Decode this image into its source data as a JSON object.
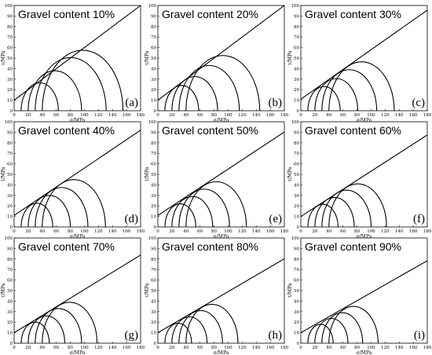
{
  "chart_data": [
    {
      "type": "line",
      "title": "Gravel content 10%",
      "panel_label": "(a)",
      "xlabel": "σ/MPa",
      "ylabel": "τ/MPa",
      "xlim": [
        0,
        180
      ],
      "ylim": [
        0,
        100
      ],
      "xticks": [
        0,
        20,
        40,
        60,
        80,
        100,
        120,
        140,
        160,
        180
      ],
      "yticks": [
        0,
        10,
        20,
        30,
        40,
        50,
        60,
        70,
        80,
        90,
        100
      ],
      "envelope": {
        "intercept": 10,
        "slope": 0.5
      },
      "circles": [
        {
          "sigma3": 10,
          "sigma1": 63
        },
        {
          "sigma3": 20,
          "sigma1": 96
        },
        {
          "sigma3": 30,
          "sigma1": 131
        },
        {
          "sigma3": 40,
          "sigma1": 155
        }
      ]
    },
    {
      "type": "line",
      "title": "Gravel content 20%",
      "panel_label": "(b)",
      "xlabel": "σ/MPa",
      "ylabel": "τ/MPa",
      "xlim": [
        0,
        180
      ],
      "ylim": [
        0,
        100
      ],
      "xticks": [
        0,
        20,
        40,
        60,
        80,
        100,
        120,
        140,
        160,
        180
      ],
      "yticks": [
        0,
        10,
        20,
        30,
        40,
        50,
        60,
        70,
        80,
        90,
        100
      ],
      "envelope": {
        "intercept": 10,
        "slope": 0.5
      },
      "circles": [
        {
          "sigma3": 10,
          "sigma1": 58
        },
        {
          "sigma3": 20,
          "sigma1": 85
        },
        {
          "sigma3": 30,
          "sigma1": 116
        },
        {
          "sigma3": 40,
          "sigma1": 145
        }
      ]
    },
    {
      "type": "line",
      "title": "Gravel content 30%",
      "panel_label": "(c)",
      "xlabel": "σ/MPa",
      "ylabel": "τ/MPa",
      "xlim": [
        0,
        180
      ],
      "ylim": [
        0,
        100
      ],
      "xticks": [
        0,
        20,
        40,
        60,
        80,
        100,
        120,
        140,
        160,
        180
      ],
      "yticks": [
        0,
        10,
        20,
        30,
        40,
        50,
        60,
        70,
        80,
        90,
        100
      ],
      "envelope": {
        "intercept": 11,
        "slope": 0.47
      },
      "circles": [
        {
          "sigma3": 10,
          "sigma1": 56
        },
        {
          "sigma3": 20,
          "sigma1": 81
        },
        {
          "sigma3": 30,
          "sigma1": 108
        },
        {
          "sigma3": 40,
          "sigma1": 133
        }
      ]
    },
    {
      "type": "line",
      "title": "Gravel content 40%",
      "panel_label": "(d)",
      "xlabel": "σ/MPa",
      "ylabel": "τ/MPa",
      "xlim": [
        0,
        180
      ],
      "ylim": [
        0,
        100
      ],
      "xticks": [
        0,
        20,
        40,
        60,
        80,
        100,
        120,
        140,
        160,
        180
      ],
      "yticks": [
        0,
        10,
        20,
        30,
        40,
        50,
        60,
        70,
        80,
        90,
        100
      ],
      "envelope": {
        "intercept": 11,
        "slope": 0.45
      },
      "circles": [
        {
          "sigma3": 10,
          "sigma1": 55
        },
        {
          "sigma3": 20,
          "sigma1": 80
        },
        {
          "sigma3": 30,
          "sigma1": 105
        },
        {
          "sigma3": 40,
          "sigma1": 130
        }
      ]
    },
    {
      "type": "line",
      "title": "Gravel content 50%",
      "panel_label": "(e)",
      "xlabel": "σ/MPa",
      "ylabel": "τ/MPa",
      "xlim": [
        0,
        180
      ],
      "ylim": [
        0,
        100
      ],
      "xticks": [
        0,
        20,
        40,
        60,
        80,
        100,
        120,
        140,
        160,
        180
      ],
      "yticks": [
        0,
        10,
        20,
        30,
        40,
        50,
        60,
        70,
        80,
        90,
        100
      ],
      "envelope": {
        "intercept": 11,
        "slope": 0.44
      },
      "circles": [
        {
          "sigma3": 10,
          "sigma1": 54
        },
        {
          "sigma3": 20,
          "sigma1": 78
        },
        {
          "sigma3": 30,
          "sigma1": 102
        },
        {
          "sigma3": 40,
          "sigma1": 126
        }
      ]
    },
    {
      "type": "line",
      "title": "Gravel content 60%",
      "panel_label": "(f)",
      "xlabel": "σ/MPa",
      "ylabel": "τ/MPa",
      "xlim": [
        0,
        180
      ],
      "ylim": [
        0,
        100
      ],
      "xticks": [
        0,
        20,
        40,
        60,
        80,
        100,
        120,
        140,
        160,
        180
      ],
      "yticks": [
        0,
        10,
        20,
        30,
        40,
        50,
        60,
        70,
        80,
        90,
        100
      ],
      "envelope": {
        "intercept": 10,
        "slope": 0.43
      },
      "circles": [
        {
          "sigma3": 10,
          "sigma1": 53
        },
        {
          "sigma3": 20,
          "sigma1": 76
        },
        {
          "sigma3": 30,
          "sigma1": 100
        },
        {
          "sigma3": 40,
          "sigma1": 122
        }
      ]
    },
    {
      "type": "line",
      "title": "Gravel content 70%",
      "panel_label": "(g)",
      "xlabel": "σ/MPa",
      "ylabel": "τ/MPa",
      "xlim": [
        0,
        180
      ],
      "ylim": [
        0,
        100
      ],
      "xticks": [
        0,
        20,
        40,
        60,
        80,
        100,
        120,
        140,
        160,
        180
      ],
      "yticks": [
        0,
        10,
        20,
        30,
        40,
        50,
        60,
        70,
        80,
        90,
        100
      ],
      "envelope": {
        "intercept": 10,
        "slope": 0.41
      },
      "circles": [
        {
          "sigma3": 10,
          "sigma1": 50
        },
        {
          "sigma3": 20,
          "sigma1": 72
        },
        {
          "sigma3": 30,
          "sigma1": 96
        },
        {
          "sigma3": 40,
          "sigma1": 118
        }
      ]
    },
    {
      "type": "line",
      "title": "Gravel content 80%",
      "panel_label": "(h)",
      "xlabel": "σ/MPa",
      "ylabel": "τ/MPa",
      "xlim": [
        0,
        180
      ],
      "ylim": [
        0,
        100
      ],
      "xticks": [
        0,
        20,
        40,
        60,
        80,
        100,
        120,
        140,
        160,
        180
      ],
      "yticks": [
        0,
        10,
        20,
        30,
        40,
        50,
        60,
        70,
        80,
        90,
        100
      ],
      "envelope": {
        "intercept": 10,
        "slope": 0.39
      },
      "circles": [
        {
          "sigma3": 10,
          "sigma1": 48
        },
        {
          "sigma3": 20,
          "sigma1": 70
        },
        {
          "sigma3": 30,
          "sigma1": 92
        },
        {
          "sigma3": 40,
          "sigma1": 114
        }
      ]
    },
    {
      "type": "line",
      "title": "Gravel content 90%",
      "panel_label": "(i)",
      "xlabel": "σ/MPa",
      "ylabel": "τ/MPa",
      "xlim": [
        0,
        180
      ],
      "ylim": [
        0,
        100
      ],
      "xticks": [
        0,
        20,
        40,
        60,
        80,
        100,
        120,
        140,
        160,
        180
      ],
      "yticks": [
        0,
        10,
        20,
        30,
        40,
        50,
        60,
        70,
        80,
        90,
        100
      ],
      "envelope": {
        "intercept": 10,
        "slope": 0.38
      },
      "circles": [
        {
          "sigma3": 10,
          "sigma1": 46
        },
        {
          "sigma3": 20,
          "sigma1": 67
        },
        {
          "sigma3": 30,
          "sigma1": 88
        },
        {
          "sigma3": 40,
          "sigma1": 110
        }
      ]
    }
  ]
}
